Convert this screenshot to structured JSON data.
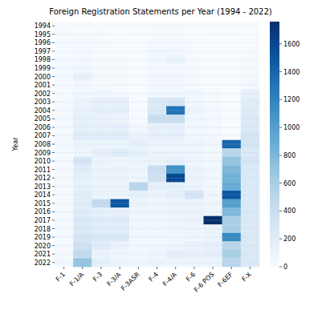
{
  "chart_data": {
    "type": "heatmap",
    "title": "Foreign Registration Statements per Year (1994 - 2022)",
    "y_label": "Year",
    "x": [
      "F-1",
      "F-1/A",
      "F-3",
      "F-3/A",
      "F-3ASR",
      "F-4",
      "F-4/A",
      "F-6",
      "F-6 POS",
      "F-6EF",
      "F-X"
    ],
    "y": [
      1994,
      1995,
      1996,
      1997,
      1998,
      1999,
      2000,
      2001,
      2002,
      2003,
      2004,
      2005,
      2006,
      2007,
      2008,
      2009,
      2010,
      2011,
      2012,
      2013,
      2014,
      2015,
      2016,
      2017,
      2018,
      2019,
      2020,
      2021,
      2022
    ],
    "values": [
      [
        5,
        10,
        5,
        5,
        0,
        10,
        10,
        5,
        0,
        0,
        5
      ],
      [
        10,
        20,
        10,
        5,
        0,
        20,
        20,
        5,
        0,
        0,
        5
      ],
      [
        15,
        30,
        15,
        10,
        0,
        30,
        30,
        10,
        0,
        0,
        10
      ],
      [
        20,
        40,
        20,
        15,
        0,
        60,
        60,
        10,
        0,
        0,
        20
      ],
      [
        15,
        40,
        20,
        15,
        0,
        60,
        100,
        10,
        0,
        0,
        20
      ],
      [
        20,
        60,
        20,
        15,
        0,
        40,
        40,
        10,
        0,
        0,
        20
      ],
      [
        30,
        120,
        30,
        20,
        0,
        50,
        50,
        15,
        0,
        0,
        30
      ],
      [
        15,
        50,
        20,
        15,
        0,
        40,
        40,
        20,
        10,
        0,
        40
      ],
      [
        20,
        60,
        50,
        40,
        0,
        60,
        60,
        60,
        30,
        0,
        150
      ],
      [
        30,
        100,
        150,
        150,
        0,
        250,
        300,
        60,
        30,
        0,
        200
      ],
      [
        40,
        120,
        150,
        150,
        0,
        250,
        1300,
        80,
        40,
        0,
        220
      ],
      [
        40,
        150,
        120,
        100,
        0,
        400,
        400,
        60,
        40,
        0,
        250
      ],
      [
        40,
        150,
        150,
        150,
        50,
        150,
        150,
        50,
        40,
        0,
        250
      ],
      [
        40,
        200,
        200,
        200,
        100,
        150,
        150,
        60,
        40,
        0,
        300
      ],
      [
        30,
        100,
        100,
        100,
        150,
        100,
        100,
        80,
        50,
        1400,
        300
      ],
      [
        20,
        80,
        150,
        200,
        150,
        100,
        100,
        80,
        60,
        500,
        250
      ],
      [
        30,
        300,
        100,
        80,
        100,
        100,
        150,
        80,
        60,
        700,
        300
      ],
      [
        30,
        200,
        100,
        100,
        80,
        400,
        1100,
        100,
        60,
        800,
        250
      ],
      [
        30,
        150,
        100,
        100,
        80,
        350,
        1600,
        100,
        60,
        850,
        250
      ],
      [
        30,
        150,
        100,
        100,
        500,
        150,
        150,
        100,
        60,
        900,
        250
      ],
      [
        30,
        200,
        100,
        100,
        150,
        100,
        150,
        300,
        80,
        1500,
        250
      ],
      [
        30,
        200,
        450,
        1500,
        100,
        80,
        100,
        100,
        80,
        1000,
        250
      ],
      [
        30,
        200,
        150,
        150,
        80,
        80,
        100,
        100,
        80,
        800,
        250
      ],
      [
        30,
        250,
        200,
        200,
        60,
        60,
        80,
        100,
        1760,
        600,
        250
      ],
      [
        30,
        250,
        200,
        200,
        60,
        60,
        80,
        80,
        100,
        600,
        250
      ],
      [
        30,
        300,
        250,
        250,
        60,
        60,
        60,
        80,
        100,
        1150,
        250
      ],
      [
        30,
        350,
        200,
        100,
        60,
        60,
        80,
        120,
        150,
        500,
        250
      ],
      [
        40,
        450,
        100,
        80,
        60,
        80,
        150,
        120,
        150,
        600,
        250
      ],
      [
        40,
        700,
        150,
        100,
        60,
        100,
        80,
        100,
        100,
        500,
        250
      ]
    ],
    "colorbar": {
      "range": [
        0,
        1760
      ],
      "ticks": [
        0,
        200,
        400,
        600,
        800,
        1000,
        1200,
        1400,
        1600
      ]
    },
    "grid": true
  }
}
